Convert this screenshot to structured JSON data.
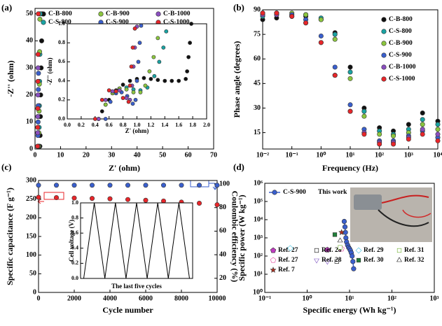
{
  "chart_data": [
    {
      "type": "scatter",
      "panel_label": "(a)",
      "xlabel": "Z' (ohm)",
      "ylabel": "-Z'' (ohm)",
      "xlim": [
        0,
        70
      ],
      "ylim": [
        0,
        52
      ],
      "xticks": [
        0,
        10,
        20,
        30,
        40,
        50,
        60,
        70
      ],
      "yticks": [
        0,
        10,
        20,
        30,
        40,
        50
      ],
      "series": [
        {
          "name": "C-B-800",
          "color": "#111111",
          "x": [
            1.9,
            2.0,
            2.1,
            2.2,
            2.4,
            2.6,
            2.8
          ],
          "values": [
            1,
            5,
            12,
            20,
            30,
            40,
            50
          ]
        },
        {
          "name": "C-S-800",
          "color": "#1aa3a3",
          "x": [
            1.5,
            1.6,
            1.7,
            1.8,
            1.9,
            2.0
          ],
          "values": [
            1,
            8,
            16,
            25,
            35,
            50
          ]
        },
        {
          "name": "C-B-900",
          "color": "#8cc63f",
          "x": [
            1.4,
            1.5,
            1.6,
            1.7,
            1.8,
            1.9
          ],
          "values": [
            1,
            6,
            14,
            24,
            36,
            48
          ]
        },
        {
          "name": "C-S-900",
          "color": "#3a5fcd",
          "x": [
            1.1,
            1.15,
            1.2,
            1.25,
            1.3,
            1.35
          ],
          "values": [
            1,
            5,
            10,
            16,
            22,
            28
          ]
        },
        {
          "name": "C-B-1000",
          "color": "#8a4fbf",
          "x": [
            1.0,
            1.05,
            1.1,
            1.15,
            1.2
          ],
          "values": [
            1,
            6,
            12,
            20,
            30
          ]
        },
        {
          "name": "C-S-1000",
          "color": "#e8262a",
          "x": [
            1.0,
            1.05,
            1.1,
            1.15,
            1.2,
            1.3
          ],
          "values": [
            1,
            8,
            15,
            25,
            35,
            50
          ]
        }
      ]
    },
    {
      "type": "scatter",
      "xlabel": "Z' (ohm)",
      "ylabel": "-Z'' (ohm)",
      "xlim": [
        0,
        2.0
      ],
      "ylim": [
        0,
        1.0
      ],
      "xticks": [
        {
          "value": 0,
          "label": "0.0"
        },
        0.2,
        0.4,
        0.6,
        0.8,
        {
          "value": 1,
          "label": "1.0"
        },
        1.2,
        1.4,
        1.6,
        1.8,
        {
          "value": 2,
          "label": "2.0"
        }
      ],
      "yticks": [
        {
          "value": 0,
          "label": "0.0"
        },
        0.2,
        0.4,
        0.6,
        0.8,
        {
          "value": 1,
          "label": "1.0"
        }
      ],
      "series": [
        {
          "color": "#111111",
          "x": [
            0.45,
            0.5,
            0.6,
            0.7,
            0.8,
            0.9,
            1.0,
            1.1,
            1.2,
            1.3,
            1.4,
            1.5,
            1.6,
            1.7,
            1.72,
            1.74,
            1.76,
            1.78
          ],
          "values": [
            0,
            0.08,
            0.2,
            0.3,
            0.36,
            0.4,
            0.42,
            0.43,
            0.42,
            0.41,
            0.4,
            0.4,
            0.4,
            0.42,
            0.5,
            0.65,
            0.8,
            1.0
          ]
        },
        {
          "color": "#1aa3a3",
          "x": [
            0.45,
            0.55,
            0.65,
            0.75,
            0.85,
            0.95,
            1.05,
            1.15,
            1.25,
            1.32,
            1.38,
            1.42
          ],
          "values": [
            0,
            0.15,
            0.27,
            0.32,
            0.33,
            0.31,
            0.3,
            0.33,
            0.45,
            0.6,
            0.75,
            0.92
          ]
        },
        {
          "color": "#8cc63f",
          "x": [
            0.45,
            0.55,
            0.65,
            0.75,
            0.85,
            0.95,
            1.05,
            1.12,
            1.18,
            1.24,
            1.3
          ],
          "values": [
            0,
            0.15,
            0.27,
            0.32,
            0.31,
            0.28,
            0.28,
            0.35,
            0.5,
            0.65,
            0.85
          ]
        },
        {
          "color": "#3a5fcd",
          "x": [
            0.55,
            0.62,
            0.7,
            0.78,
            0.86,
            0.94,
            0.98,
            1.0,
            1.02,
            1.04,
            1.06
          ],
          "values": [
            0,
            0.18,
            0.27,
            0.28,
            0.24,
            0.16,
            0.2,
            0.4,
            0.6,
            0.8,
            0.98
          ]
        },
        {
          "color": "#8a4fbf",
          "x": [
            0.45,
            0.55,
            0.65,
            0.75,
            0.85,
            0.9,
            0.93,
            0.95,
            0.97,
            1.0
          ],
          "values": [
            0,
            0.2,
            0.29,
            0.3,
            0.22,
            0.2,
            0.35,
            0.55,
            0.75,
            0.97
          ]
        },
        {
          "color": "#e8262a",
          "x": [
            0.4,
            0.5,
            0.6,
            0.7,
            0.8,
            0.88,
            0.9,
            0.92,
            0.94,
            0.97
          ],
          "values": [
            0,
            0.2,
            0.3,
            0.29,
            0.22,
            0.18,
            0.35,
            0.55,
            0.75,
            0.95
          ]
        }
      ]
    },
    {
      "type": "scatter",
      "panel_label": "(b)",
      "xlabel": "Frequency (Hz)",
      "ylabel": "Phase angle (degrees)",
      "xlog": true,
      "xlim": [
        0.01,
        10000
      ],
      "ylim": [
        5,
        90
      ],
      "xticks": [
        {
          "value": 0.01,
          "label": "10⁻²"
        },
        {
          "value": 0.1,
          "label": "10⁻¹"
        },
        {
          "value": 1,
          "label": "10⁰"
        },
        {
          "value": 10,
          "label": "10¹"
        },
        {
          "value": 100,
          "label": "10²"
        },
        {
          "value": 1000,
          "label": "10³"
        },
        {
          "value": 10000,
          "label": "10⁴"
        }
      ],
      "yticks": [
        15,
        30,
        45,
        60,
        75,
        90
      ],
      "x": [
        0.01,
        0.03,
        0.1,
        0.3,
        1,
        3,
        10,
        30,
        100,
        300,
        1000,
        3000,
        10000
      ],
      "series": [
        {
          "name": "C-B-800",
          "color": "#111111",
          "values": [
            84,
            85,
            86,
            86,
            84,
            76,
            55,
            30,
            18,
            16,
            20,
            27,
            22
          ]
        },
        {
          "name": "C-S-800",
          "color": "#1aa3a3",
          "values": [
            86,
            87,
            87,
            87,
            85,
            75,
            52,
            28,
            16,
            14,
            17,
            23,
            20
          ]
        },
        {
          "name": "C-B-900",
          "color": "#8cc63f",
          "values": [
            87,
            88,
            88,
            87,
            84,
            72,
            48,
            25,
            14,
            13,
            15,
            20,
            17
          ]
        },
        {
          "name": "C-S-900",
          "color": "#3a5fcd",
          "values": [
            88,
            88,
            87,
            84,
            74,
            55,
            32,
            17,
            10,
            10,
            13,
            16,
            12
          ]
        },
        {
          "name": "C-B-1000",
          "color": "#8a4fbf",
          "values": [
            87,
            87,
            86,
            82,
            70,
            50,
            28,
            15,
            9,
            9,
            12,
            17,
            14
          ]
        },
        {
          "name": "C-S-1000",
          "color": "#e8262a",
          "values": [
            88,
            88,
            86,
            82,
            70,
            50,
            28,
            14,
            8,
            8,
            11,
            14,
            10
          ]
        }
      ]
    },
    {
      "type": "scatter",
      "panel_label": "(c)",
      "xlabel": "Cycle number",
      "ylabel": "Specific capacitance (F g⁻¹)",
      "y2label": "Coulombic efficiency (%)",
      "xlim": [
        0,
        10000
      ],
      "ylim": [
        0,
        300
      ],
      "y2lim": [
        8,
        103
      ],
      "xticks": [
        0,
        2000,
        4000,
        6000,
        8000,
        10000
      ],
      "yticks": [
        0,
        50,
        100,
        150,
        200,
        250,
        300
      ],
      "y2ticks": [
        20,
        40,
        60,
        80,
        100
      ],
      "x": [
        0,
        1000,
        2000,
        3000,
        4000,
        5000,
        6000,
        7000,
        8000,
        9000,
        10000
      ],
      "series": [
        {
          "color": "#e8262a",
          "values": [
            255,
            254,
            253,
            252,
            251,
            249,
            247,
            245,
            242,
            239,
            235
          ]
        },
        {
          "color": "#3a5fcd",
          "axis": "y2",
          "values": [
            99,
            99,
            99,
            99,
            99,
            99,
            99,
            99,
            99,
            99,
            99
          ]
        }
      ]
    },
    {
      "type": "line",
      "ylabel": "Cell voltage (V)",
      "caption": "The last five cycles",
      "xlim": [
        -0.3,
        10.3
      ],
      "ylim": [
        0,
        1.0
      ],
      "yticks": [
        {
          "value": 0,
          "label": "0.0"
        },
        0.2,
        0.4,
        0.6,
        0.8,
        {
          "value": 1,
          "label": "1.0"
        }
      ],
      "x": [
        0,
        1,
        2,
        3,
        4,
        5,
        6,
        7,
        8,
        9,
        10
      ],
      "series": [
        {
          "color": "#000000",
          "values": [
            0,
            1,
            0,
            1,
            0,
            1,
            0,
            1,
            0,
            1,
            0
          ]
        }
      ]
    },
    {
      "type": "scatter",
      "panel_label": "(d)",
      "xlabel": "Specific energy (Wh kg⁻¹)",
      "ylabel": "Specific power (W kg⁻¹)",
      "xlog": true,
      "ylog": true,
      "xlim": [
        0.1,
        1000
      ],
      "ylim": [
        1,
        1000000
      ],
      "xticks": [
        {
          "value": 0.1,
          "label": "10⁻¹"
        },
        {
          "value": 1,
          "label": "10⁰"
        },
        {
          "value": 10,
          "label": "10¹"
        },
        {
          "value": 100,
          "label": "10²"
        },
        {
          "value": 1000,
          "label": "10³"
        }
      ],
      "yticks": [
        {
          "value": 1,
          "label": "10⁰"
        },
        {
          "value": 10,
          "label": "10¹"
        },
        {
          "value": 100,
          "label": "10²"
        },
        {
          "value": 1000,
          "label": "10³"
        },
        {
          "value": 10000,
          "label": "10⁴"
        },
        {
          "value": 100000,
          "label": "10⁵"
        },
        {
          "value": 1000000,
          "label": "10⁶"
        }
      ],
      "series": [
        {
          "name": "C-S-900",
          "legend_note": "This work",
          "color": "#3a5fcd",
          "marker": "circle",
          "line": true,
          "x": [
            7.5,
            7.8,
            8,
            8.2,
            8.5,
            9,
            9.5,
            10,
            10.5,
            11,
            11.5,
            12,
            12.5
          ],
          "values": [
            8000,
            4000,
            2000,
            1000,
            600,
            400,
            300,
            250,
            200,
            150,
            100,
            50,
            20
          ]
        },
        {
          "name": "Ref. 27",
          "color": "#c03cc0",
          "marker": "pentagon",
          "x": [
            3
          ],
          "values": [
            220
          ]
        },
        {
          "name": "Ref. 27",
          "color": "#e0409a",
          "marker": "pentagon",
          "filled": false,
          "x": [
            6.5
          ],
          "values": [
            250
          ]
        },
        {
          "name": "Ref. 7",
          "color": "#b03020",
          "marker": "star",
          "x": [
            6.5
          ],
          "values": [
            2000
          ]
        },
        {
          "name": "Ref. 28",
          "color": "#111111",
          "marker": "square",
          "filled": false,
          "x": [
            5
          ],
          "values": [
            50
          ]
        },
        {
          "name": "Ref. 28",
          "color": "#7b50c0",
          "marker": "triangle-down",
          "filled": false,
          "x": [
            3
          ],
          "values": [
            50
          ]
        },
        {
          "name": "Ref. 29",
          "color": "#40c0e0",
          "marker": "diamond",
          "filled": false,
          "x": [
            0.4
          ],
          "values": [
            270
          ]
        },
        {
          "name": "Ref. 30",
          "color": "#20803a",
          "marker": "square",
          "x": [
            4.5
          ],
          "values": [
            1500
          ]
        },
        {
          "name": "Ref. 31",
          "color": "#70b030",
          "marker": "square",
          "filled": false,
          "x": [
            6
          ],
          "values": [
            300
          ]
        },
        {
          "name": "Ref. 32",
          "color": "#111111",
          "marker": "triangle",
          "filled": false,
          "x": [
            6
          ],
          "values": [
            700
          ]
        }
      ]
    }
  ]
}
